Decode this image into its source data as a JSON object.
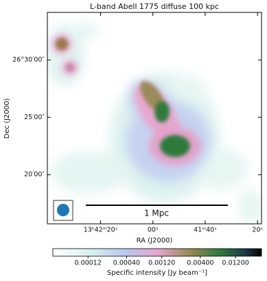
{
  "chart_data": {
    "type": "image",
    "title": "L-band Abell 1775 diffuse 100 kpc",
    "x_label": "RA (J2000)",
    "y_label": "Dec (J2000)",
    "xlim": [
      205.668,
      205.327
    ],
    "xticks": [
      {
        "value": 205.5833,
        "label": "13ʰ42ᵐ20ˢ"
      },
      {
        "value": 205.5,
        "label": "00ˢ"
      },
      {
        "value": 205.4167,
        "label": "41ᵐ40ˢ"
      },
      {
        "value": 205.3333,
        "label": "20ˢ"
      }
    ],
    "ylim": [
      26.262,
      26.569
    ],
    "yticks": [
      {
        "value": 26.5,
        "label": "26°30′00″"
      },
      {
        "value": 26.4167,
        "label": "25′00″"
      },
      {
        "value": 26.3333,
        "label": "20′00″"
      }
    ],
    "scalebar_label": "1 Mpc",
    "colorbar_label": "Specific intensity [Jy beam⁻¹]",
    "clim": [
      4e-05,
      0.027
    ],
    "clog": true,
    "cticks": [
      {
        "value": 0.00012,
        "label": "0.00012"
      },
      {
        "value": 0.0004,
        "label": "0.00040"
      },
      {
        "value": 0.0012,
        "label": "0.00120"
      },
      {
        "value": 0.004,
        "label": "0.00400"
      },
      {
        "value": 0.012,
        "label": "0.01200"
      }
    ]
  }
}
